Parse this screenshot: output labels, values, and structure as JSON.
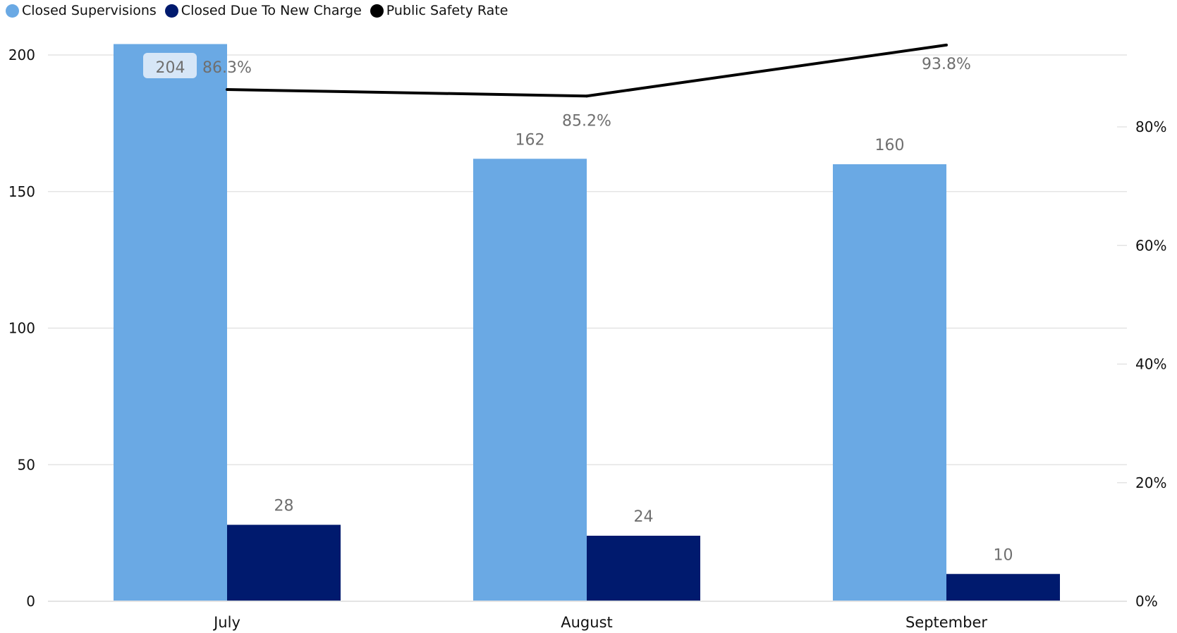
{
  "chart_data": {
    "type": "bar",
    "categories": [
      "July",
      "August",
      "September"
    ],
    "series": [
      {
        "name": "Closed Supervisions",
        "type": "bar",
        "axis": "left",
        "color": "#6aa9e4",
        "values": [
          204,
          162,
          160
        ],
        "labels": [
          "204",
          "162",
          "160"
        ]
      },
      {
        "name": "Closed Due To New Charge",
        "type": "bar",
        "axis": "left",
        "color": "#001a6e",
        "values": [
          28,
          24,
          10
        ],
        "labels": [
          "28",
          "24",
          "10"
        ]
      },
      {
        "name": "Public Safety Rate",
        "type": "line",
        "axis": "right",
        "color": "#000000",
        "values": [
          86.3,
          85.2,
          93.8
        ],
        "labels": [
          "86.3%",
          "85.2%",
          "93.8%"
        ]
      }
    ],
    "y_left": {
      "range": [
        0,
        200
      ],
      "ticks": [
        "0",
        "50",
        "100",
        "150",
        "200"
      ],
      "tick_values": [
        0,
        50,
        100,
        150,
        200
      ]
    },
    "y_right": {
      "range": [
        0,
        80
      ],
      "ticks": [
        "0%",
        "20%",
        "40%",
        "60%",
        "80%"
      ],
      "tick_values": [
        0,
        20,
        40,
        60,
        80
      ]
    },
    "grid": true,
    "legend_position": "top-left"
  }
}
